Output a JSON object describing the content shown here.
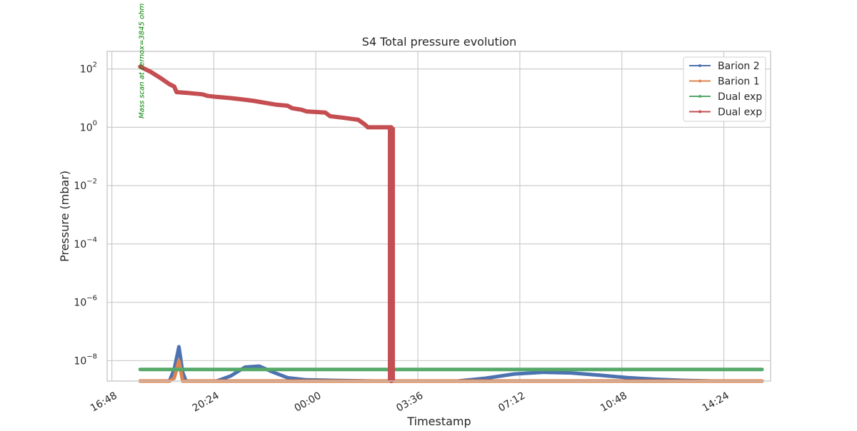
{
  "chart_data": {
    "type": "line",
    "title": "S4 Total pressure evolution",
    "xlabel": "Timestamp",
    "ylabel": "Pressure (mbar)",
    "yscale": "log",
    "ylim": [
      2e-09,
      400
    ],
    "xlim": [
      "16:38",
      "16:03"
    ],
    "x_tick_labels": [
      "16:48",
      "20:24",
      "00:00",
      "03:36",
      "07:12",
      "10:48",
      "14:24"
    ],
    "y_ticks": [
      {
        "value": 1e-08,
        "base": "10",
        "exp": "−8"
      },
      {
        "value": 1e-06,
        "base": "10",
        "exp": "−6"
      },
      {
        "value": 0.0001,
        "base": "10",
        "exp": "−4"
      },
      {
        "value": 0.01,
        "base": "10",
        "exp": "−2"
      },
      {
        "value": 1,
        "base": "10",
        "exp": "0"
      },
      {
        "value": 100,
        "base": "10",
        "exp": "2"
      }
    ],
    "grid": true,
    "legend_position": "top-right",
    "annotation": {
      "text": "Mass scan at cernox=3845 ohm",
      "x": "17:50"
    },
    "series": [
      {
        "name": "Barion 2",
        "color": "#4c72b0",
        "points": [
          [
            "17:48",
            1.3e-09
          ],
          [
            "18:30",
            1.3e-09
          ],
          [
            "18:50",
            1.5e-09
          ],
          [
            "19:00",
            5e-09
          ],
          [
            "19:10",
            3e-08
          ],
          [
            "19:18",
            4e-09
          ],
          [
            "19:25",
            1.9e-09
          ],
          [
            "20:00",
            1.9e-09
          ],
          [
            "20:30",
            2e-09
          ],
          [
            "21:00",
            3e-09
          ],
          [
            "21:30",
            6e-09
          ],
          [
            "22:00",
            6.5e-09
          ],
          [
            "22:30",
            4e-09
          ],
          [
            "23:00",
            2.6e-09
          ],
          [
            "23:40",
            2.2e-09
          ],
          [
            "00:40",
            2.1e-09
          ],
          [
            "02:00",
            1.9e-09
          ],
          [
            "03:00",
            1.85e-09
          ],
          [
            "04:00",
            1.85e-09
          ],
          [
            "05:00",
            1.9e-09
          ],
          [
            "06:00",
            2.5e-09
          ],
          [
            "07:00",
            3.5e-09
          ],
          [
            "08:00",
            4e-09
          ],
          [
            "09:00",
            3.8e-09
          ],
          [
            "10:00",
            3.2e-09
          ],
          [
            "11:00",
            2.6e-09
          ],
          [
            "12:00",
            2.3e-09
          ],
          [
            "13:00",
            2.1e-09
          ],
          [
            "14:00",
            2e-09
          ],
          [
            "15:00",
            2e-09
          ],
          [
            "15:45",
            2e-09
          ]
        ]
      },
      {
        "name": "Barion 1",
        "color": "#dd8452",
        "points": [
          [
            "17:48",
            6e-10
          ],
          [
            "18:30",
            6e-10
          ],
          [
            "18:50",
            7e-10
          ],
          [
            "19:00",
            2.5e-09
          ],
          [
            "19:10",
            1e-08
          ],
          [
            "19:18",
            1.5e-09
          ],
          [
            "19:25",
            8e-10
          ],
          [
            "20:00",
            8e-10
          ],
          [
            "20:30",
            8.5e-10
          ],
          [
            "21:00",
            1.1e-09
          ],
          [
            "21:30",
            1.7e-09
          ],
          [
            "22:00",
            1.8e-09
          ],
          [
            "22:30",
            1.3e-09
          ],
          [
            "23:00",
            1e-09
          ],
          [
            "23:40",
            8.5e-10
          ],
          [
            "00:40",
            8e-10
          ],
          [
            "02:00",
            7.5e-10
          ],
          [
            "03:00",
            7.2e-10
          ],
          [
            "04:00",
            7.2e-10
          ],
          [
            "05:00",
            7.3e-10
          ],
          [
            "06:00",
            8.5e-10
          ],
          [
            "07:00",
            1.05e-09
          ],
          [
            "08:00",
            1.1e-09
          ],
          [
            "09:00",
            1.05e-09
          ],
          [
            "10:00",
            9.5e-10
          ],
          [
            "11:00",
            8.8e-10
          ],
          [
            "12:00",
            8.3e-10
          ],
          [
            "13:00",
            7.8e-10
          ],
          [
            "14:00",
            7.5e-10
          ],
          [
            "15:00",
            7.2e-10
          ],
          [
            "15:45",
            7e-10
          ]
        ]
      },
      {
        "name": "Dual exp",
        "color": "#55a868",
        "points": [
          [
            "17:48",
            5e-09
          ],
          [
            "19:00",
            5e-09
          ],
          [
            "00:00",
            5e-09
          ],
          [
            "06:00",
            5e-09
          ],
          [
            "12:00",
            5e-09
          ],
          [
            "15:45",
            5e-09
          ]
        ]
      },
      {
        "name": "Dual exp",
        "color": "#c44e52",
        "points": [
          [
            "17:48",
            120
          ],
          [
            "18:10",
            80
          ],
          [
            "18:30",
            50
          ],
          [
            "18:50",
            30
          ],
          [
            "19:00",
            25
          ],
          [
            "19:05",
            16
          ],
          [
            "19:30",
            15
          ],
          [
            "20:00",
            13.5
          ],
          [
            "20:10",
            12
          ],
          [
            "20:30",
            11
          ],
          [
            "21:00",
            10
          ],
          [
            "21:25",
            9
          ],
          [
            "21:50",
            8
          ],
          [
            "22:10",
            7
          ],
          [
            "22:35",
            6
          ],
          [
            "23:00",
            5.5
          ],
          [
            "23:10",
            4.5
          ],
          [
            "23:30",
            4
          ],
          [
            "23:40",
            3.5
          ],
          [
            "00:20",
            3.2
          ],
          [
            "00:30",
            2.4
          ],
          [
            "01:00",
            2.1
          ],
          [
            "01:30",
            1.8
          ],
          [
            "01:45",
            1.2
          ],
          [
            "01:50",
            1
          ],
          [
            "02:15",
            1
          ],
          [
            "02:40",
            1
          ],
          [
            "02:40",
            2e-09
          ]
        ]
      }
    ]
  }
}
